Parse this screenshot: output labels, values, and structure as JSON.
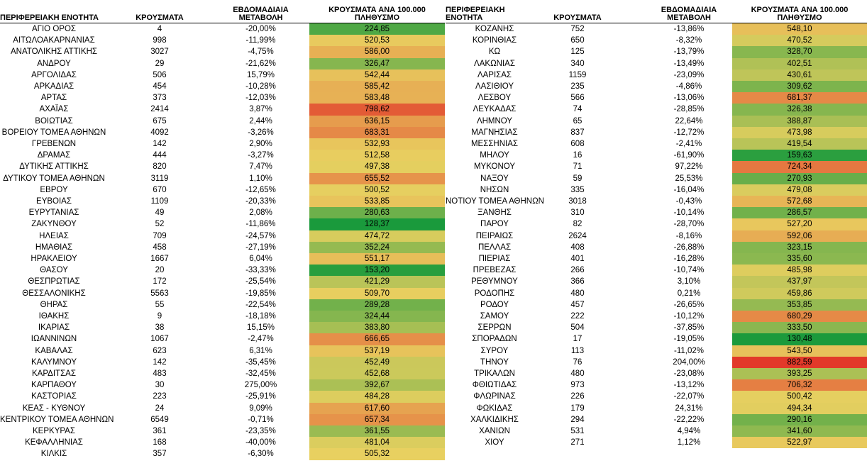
{
  "headers": {
    "region": "ΠΕΡΙΦΕΡΕΙΑΚΗ ΕΝΟΤΗΤΑ",
    "cases": "ΚΡΟΥΣΜΑΤΑ",
    "change": "ΕΒΔΟΜΑΔΙΑΙΑ ΜΕΤΑΒΟΛΗ",
    "per100k": "ΚΡΟΥΣΜΑΤΑ ΑΝΑ 100.000 ΠΛΗΘΥΣΜΟ"
  },
  "left_rows": [
    [
      "ΑΓΙΟ ΟΡΟΣ",
      "4",
      "-20,00%",
      "224,85"
    ],
    [
      "ΑΙΤΩΛΟΑΚΑΡΝΑΝΙΑΣ",
      "998",
      "-11,99%",
      "520,53"
    ],
    [
      "ΑΝΑΤΟΛΙΚΗΣ ΑΤΤΙΚΗΣ",
      "3027",
      "-4,75%",
      "586,00"
    ],
    [
      "ΑΝΔΡΟΥ",
      "29",
      "-21,62%",
      "326,47"
    ],
    [
      "ΑΡΓΟΛΙΔΑΣ",
      "506",
      "15,79%",
      "542,44"
    ],
    [
      "ΑΡΚΑΔΙΑΣ",
      "454",
      "-10,28%",
      "585,42"
    ],
    [
      "ΑΡΤΑΣ",
      "373",
      "-12,03%",
      "583,48"
    ],
    [
      "ΑΧΑΪΑΣ",
      "2414",
      "3,87%",
      "798,62"
    ],
    [
      "ΒΟΙΩΤΙΑΣ",
      "675",
      "2,44%",
      "636,15"
    ],
    [
      "ΒΟΡΕΙΟΥ ΤΟΜΕΑ ΑΘΗΝΩΝ",
      "4092",
      "-3,26%",
      "683,31"
    ],
    [
      "ΓΡΕΒΕΝΩΝ",
      "142",
      "2,90%",
      "532,93"
    ],
    [
      "ΔΡΑΜΑΣ",
      "444",
      "-3,27%",
      "512,58"
    ],
    [
      "ΔΥΤΙΚΗΣ ΑΤΤΙΚΗΣ",
      "820",
      "7,47%",
      "497,38"
    ],
    [
      "ΔΥΤΙΚΟΥ ΤΟΜΕΑ ΑΘΗΝΩΝ",
      "3119",
      "1,10%",
      "655,52"
    ],
    [
      "ΕΒΡΟΥ",
      "670",
      "-12,65%",
      "500,52"
    ],
    [
      "ΕΥΒΟΙΑΣ",
      "1109",
      "-20,33%",
      "533,85"
    ],
    [
      "ΕΥΡΥΤΑΝΙΑΣ",
      "49",
      "2,08%",
      "280,63"
    ],
    [
      "ΖΑΚΥΝΘΟΥ",
      "52",
      "-11,86%",
      "128,37"
    ],
    [
      "ΗΛΕΙΑΣ",
      "709",
      "-24,57%",
      "474,72"
    ],
    [
      "ΗΜΑΘΙΑΣ",
      "458",
      "-27,19%",
      "352,24"
    ],
    [
      "ΗΡΑΚΛΕΙΟΥ",
      "1667",
      "6,04%",
      "551,17"
    ],
    [
      "ΘΑΣΟΥ",
      "20",
      "-33,33%",
      "153,20"
    ],
    [
      "ΘΕΣΠΡΩΤΙΑΣ",
      "172",
      "-25,54%",
      "421,29"
    ],
    [
      "ΘΕΣΣΑΛΟΝΙΚΗΣ",
      "5563",
      "-19,85%",
      "509,70"
    ],
    [
      "ΘΗΡΑΣ",
      "55",
      "-22,54%",
      "289,28"
    ],
    [
      "ΙΘΑΚΗΣ",
      "9",
      "-18,18%",
      "324,44"
    ],
    [
      "ΙΚΑΡΙΑΣ",
      "38",
      "15,15%",
      "383,80"
    ],
    [
      "ΙΩΑΝΝΙΝΩΝ",
      "1067",
      "-2,47%",
      "666,65"
    ],
    [
      "ΚΑΒΑΛΑΣ",
      "623",
      "6,31%",
      "537,19"
    ],
    [
      "ΚΑΛΥΜΝΟΥ",
      "142",
      "-35,45%",
      "452,49"
    ],
    [
      "ΚΑΡΔΙΤΣΑΣ",
      "483",
      "-32,45%",
      "452,68"
    ],
    [
      "ΚΑΡΠΑΘΟΥ",
      "30",
      "275,00%",
      "392,67"
    ],
    [
      "ΚΑΣΤΟΡΙΑΣ",
      "223",
      "-25,91%",
      "484,28"
    ],
    [
      "ΚΕΑΣ - ΚΥΘΝΟΥ",
      "24",
      "9,09%",
      "617,60"
    ],
    [
      "ΚΕΝΤΡΙΚΟΥ ΤΟΜΕΑ ΑΘΗΝΩΝ",
      "6549",
      "-0,71%",
      "657,34"
    ],
    [
      "ΚΕΡΚΥΡΑΣ",
      "361",
      "-23,35%",
      "361,55"
    ],
    [
      "ΚΕΦΑΛΛΗΝΙΑΣ",
      "168",
      "-40,00%",
      "481,04"
    ],
    [
      "ΚΙΛΚΙΣ",
      "357",
      "-6,30%",
      "505,32"
    ]
  ],
  "right_rows": [
    [
      "ΚΟΖΑΝΗΣ",
      "752",
      "-13,86%",
      "548,10"
    ],
    [
      "ΚΟΡΙΝΘΙΑΣ",
      "650",
      "-8,32%",
      "470,52"
    ],
    [
      "ΚΩ",
      "125",
      "-13,79%",
      "328,70"
    ],
    [
      "ΛΑΚΩΝΙΑΣ",
      "340",
      "-13,49%",
      "402,51"
    ],
    [
      "ΛΑΡΙΣΑΣ",
      "1159",
      "-23,09%",
      "430,61"
    ],
    [
      "ΛΑΣΙΘΙΟΥ",
      "235",
      "-4,86%",
      "309,62"
    ],
    [
      "ΛΕΣΒΟΥ",
      "566",
      "-13,06%",
      "681,37"
    ],
    [
      "ΛΕΥΚΑΔΑΣ",
      "74",
      "-28,85%",
      "326,38"
    ],
    [
      "ΛΗΜΝΟΥ",
      "65",
      "22,64%",
      "388,87"
    ],
    [
      "ΜΑΓΝΗΣΙΑΣ",
      "837",
      "-12,72%",
      "473,98"
    ],
    [
      "ΜΕΣΣΗΝΙΑΣ",
      "608",
      "-2,41%",
      "419,54"
    ],
    [
      "ΜΗΛΟΥ",
      "16",
      "-61,90%",
      "159,63"
    ],
    [
      "ΜΥΚΟΝΟΥ",
      "71",
      "97,22%",
      "724,34"
    ],
    [
      "ΝΑΞΟΥ",
      "59",
      "25,53%",
      "270,93"
    ],
    [
      "ΝΗΣΩΝ",
      "335",
      "-16,04%",
      "479,08"
    ],
    [
      "ΝΟΤΙΟΥ ΤΟΜΕΑ ΑΘΗΝΩΝ",
      "3018",
      "-0,43%",
      "572,68"
    ],
    [
      "ΞΑΝΘΗΣ",
      "310",
      "-10,14%",
      "286,57"
    ],
    [
      "ΠΑΡΟΥ",
      "82",
      "-28,70%",
      "527,20"
    ],
    [
      "ΠΕΙΡΑΙΩΣ",
      "2624",
      "-8,16%",
      "592,06"
    ],
    [
      "ΠΕΛΛΑΣ",
      "408",
      "-26,88%",
      "323,15"
    ],
    [
      "ΠΙΕΡΙΑΣ",
      "401",
      "-16,28%",
      "335,60"
    ],
    [
      "ΠΡΕΒΕΖΑΣ",
      "266",
      "-10,74%",
      "485,98"
    ],
    [
      "ΡΕΘΥΜΝΟΥ",
      "366",
      "3,10%",
      "437,97"
    ],
    [
      "ΡΟΔΟΠΗΣ",
      "480",
      "0,21%",
      "459,86"
    ],
    [
      "ΡΟΔΟΥ",
      "457",
      "-26,65%",
      "353,85"
    ],
    [
      "ΣΑΜΟΥ",
      "222",
      "-10,12%",
      "680,29"
    ],
    [
      "ΣΕΡΡΩΝ",
      "504",
      "-37,85%",
      "333,50"
    ],
    [
      "ΣΠΟΡΑΔΩΝ",
      "17",
      "-19,05%",
      "130,48"
    ],
    [
      "ΣΥΡΟΥ",
      "113",
      "-11,02%",
      "543,50"
    ],
    [
      "ΤΗΝΟΥ",
      "76",
      "204,00%",
      "882,59"
    ],
    [
      "ΤΡΙΚΑΛΩΝ",
      "480",
      "-23,08%",
      "393,25"
    ],
    [
      "ΦΘΙΩΤΙΔΑΣ",
      "973",
      "-13,12%",
      "706,32"
    ],
    [
      "ΦΛΩΡΙΝΑΣ",
      "226",
      "-22,07%",
      "500,42"
    ],
    [
      "ΦΩΚΙΔΑΣ",
      "179",
      "24,31%",
      "494,34"
    ],
    [
      "ΧΑΛΚΙΔΙΚΗΣ",
      "294",
      "-22,22%",
      "290,16"
    ],
    [
      "ΧΑΝΙΩΝ",
      "531",
      "4,94%",
      "341,60"
    ],
    [
      "ΧΙΟΥ",
      "271",
      "1,12%",
      "522,97"
    ]
  ],
  "colors": {
    "low": "#1a9a3c",
    "mid": "#e8d060",
    "high": "#e2382a"
  }
}
